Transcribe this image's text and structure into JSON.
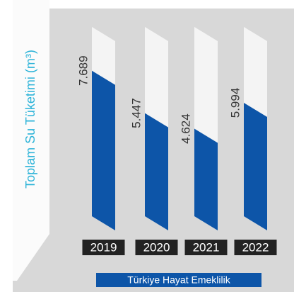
{
  "chart_data": {
    "type": "bar",
    "y_label": "Toplam Su Tüketimi (m³)",
    "categories": [
      "2019",
      "2020",
      "2021",
      "2022"
    ],
    "series": [
      {
        "name": "Türkiye Hayat Emeklilik",
        "color": "#0d55a8",
        "values": [
          7.689,
          5.447,
          4.624,
          5.994
        ]
      }
    ],
    "ylim": [
      0,
      10
    ]
  }
}
